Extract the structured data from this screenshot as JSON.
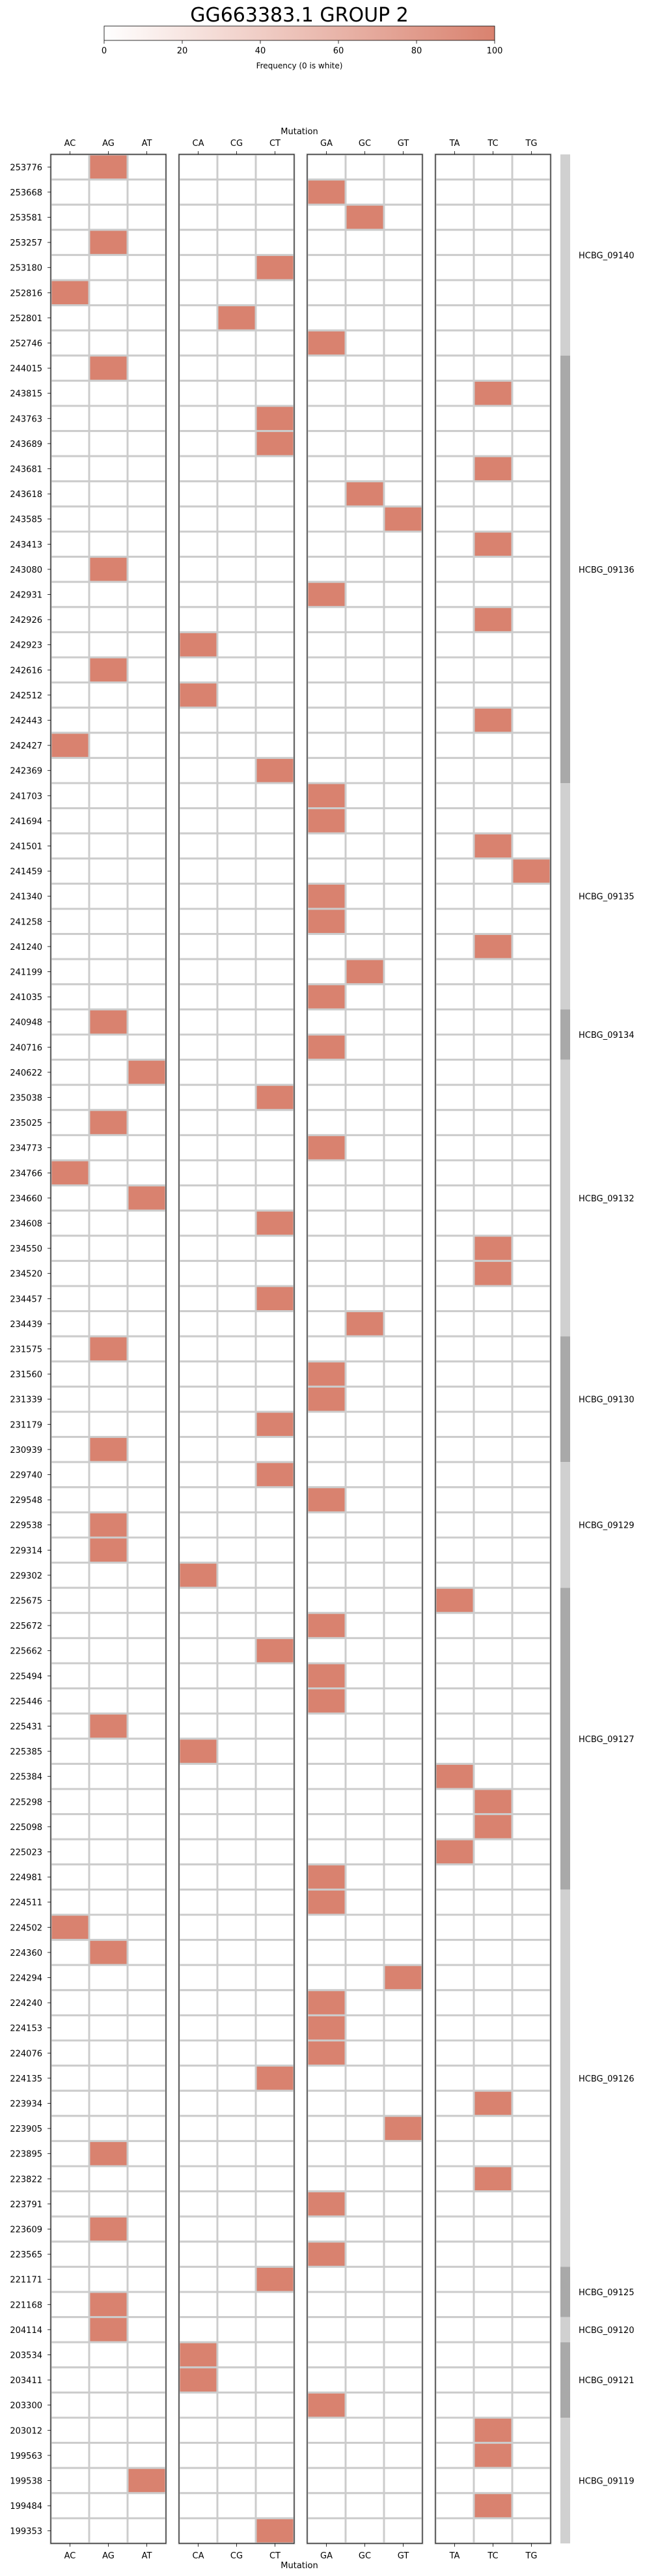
{
  "chart_data": {
    "type": "heatmap",
    "title": "GG663383.1 GROUP 2",
    "colorbar": {
      "label": "Frequency (0 is white)",
      "min": 0,
      "max": 100,
      "ticks": [
        0,
        20,
        40,
        60,
        80,
        100
      ],
      "low_color": "#ffffff",
      "high_color": "#d9826f"
    },
    "xlabel": "Mutation",
    "column_groups": [
      [
        "AC",
        "AG",
        "AT"
      ],
      [
        "CA",
        "CG",
        "CT"
      ],
      [
        "GA",
        "GC",
        "GT"
      ],
      [
        "TA",
        "TC",
        "TG"
      ]
    ],
    "rows": [
      "253776",
      "253668",
      "253581",
      "253257",
      "253180",
      "252816",
      "252801",
      "252746",
      "244015",
      "243815",
      "243763",
      "243689",
      "243681",
      "243618",
      "243585",
      "243413",
      "243080",
      "242931",
      "242926",
      "242923",
      "242616",
      "242512",
      "242443",
      "242427",
      "242369",
      "241703",
      "241694",
      "241501",
      "241459",
      "241340",
      "241258",
      "241240",
      "241199",
      "241035",
      "240948",
      "240716",
      "240622",
      "235038",
      "235025",
      "234773",
      "234766",
      "234660",
      "234608",
      "234550",
      "234520",
      "234457",
      "234439",
      "231575",
      "231560",
      "231339",
      "231179",
      "230939",
      "229740",
      "229548",
      "229538",
      "229314",
      "229302",
      "225675",
      "225672",
      "225662",
      "225494",
      "225446",
      "225431",
      "225385",
      "225384",
      "225298",
      "225098",
      "225023",
      "224981",
      "224511",
      "224502",
      "224360",
      "224294",
      "224240",
      "224153",
      "224076",
      "224135",
      "223934",
      "223905",
      "223895",
      "223822",
      "223791",
      "223609",
      "223565",
      "221171",
      "221168",
      "204114",
      "203534",
      "203411",
      "203300",
      "203012",
      "199563",
      "199538",
      "199484",
      "199353"
    ],
    "cells": [
      {
        "row": "253776",
        "col": "AG",
        "value": 100
      },
      {
        "row": "253668",
        "col": "GA",
        "value": 100
      },
      {
        "row": "253581",
        "col": "GC",
        "value": 100
      },
      {
        "row": "253257",
        "col": "AG",
        "value": 100
      },
      {
        "row": "253180",
        "col": "CT",
        "value": 100
      },
      {
        "row": "252816",
        "col": "AC",
        "value": 100
      },
      {
        "row": "252801",
        "col": "CG",
        "value": 100
      },
      {
        "row": "252746",
        "col": "GA",
        "value": 100
      },
      {
        "row": "244015",
        "col": "AG",
        "value": 100
      },
      {
        "row": "243815",
        "col": "TC",
        "value": 100
      },
      {
        "row": "243763",
        "col": "CT",
        "value": 100
      },
      {
        "row": "243689",
        "col": "CT",
        "value": 100
      },
      {
        "row": "243681",
        "col": "TC",
        "value": 100
      },
      {
        "row": "243618",
        "col": "GC",
        "value": 100
      },
      {
        "row": "243585",
        "col": "GT",
        "value": 100
      },
      {
        "row": "243413",
        "col": "TC",
        "value": 100
      },
      {
        "row": "243080",
        "col": "AG",
        "value": 100
      },
      {
        "row": "242931",
        "col": "GA",
        "value": 100
      },
      {
        "row": "242926",
        "col": "TC",
        "value": 100
      },
      {
        "row": "242923",
        "col": "CA",
        "value": 100
      },
      {
        "row": "242616",
        "col": "AG",
        "value": 100
      },
      {
        "row": "242512",
        "col": "CA",
        "value": 100
      },
      {
        "row": "242443",
        "col": "TC",
        "value": 100
      },
      {
        "row": "242427",
        "col": "AC",
        "value": 100
      },
      {
        "row": "242369",
        "col": "CT",
        "value": 100
      },
      {
        "row": "241703",
        "col": "GA",
        "value": 100
      },
      {
        "row": "241694",
        "col": "GA",
        "value": 100
      },
      {
        "row": "241501",
        "col": "TC",
        "value": 100
      },
      {
        "row": "241459",
        "col": "TG",
        "value": 100
      },
      {
        "row": "241340",
        "col": "GA",
        "value": 100
      },
      {
        "row": "241258",
        "col": "GA",
        "value": 100
      },
      {
        "row": "241240",
        "col": "TC",
        "value": 100
      },
      {
        "row": "241199",
        "col": "GC",
        "value": 100
      },
      {
        "row": "241035",
        "col": "GA",
        "value": 100
      },
      {
        "row": "240948",
        "col": "AG",
        "value": 100
      },
      {
        "row": "240716",
        "col": "GA",
        "value": 100
      },
      {
        "row": "240622",
        "col": "AT",
        "value": 100
      },
      {
        "row": "235038",
        "col": "CT",
        "value": 100
      },
      {
        "row": "235025",
        "col": "AG",
        "value": 100
      },
      {
        "row": "234773",
        "col": "GA",
        "value": 100
      },
      {
        "row": "234766",
        "col": "AC",
        "value": 100
      },
      {
        "row": "234660",
        "col": "AT",
        "value": 100
      },
      {
        "row": "234608",
        "col": "CT",
        "value": 100
      },
      {
        "row": "234550",
        "col": "TC",
        "value": 100
      },
      {
        "row": "234520",
        "col": "TC",
        "value": 100
      },
      {
        "row": "234457",
        "col": "CT",
        "value": 100
      },
      {
        "row": "234439",
        "col": "GC",
        "value": 100
      },
      {
        "row": "231575",
        "col": "AG",
        "value": 100
      },
      {
        "row": "231560",
        "col": "GA",
        "value": 100
      },
      {
        "row": "231339",
        "col": "GA",
        "value": 100
      },
      {
        "row": "231179",
        "col": "CT",
        "value": 100
      },
      {
        "row": "230939",
        "col": "AG",
        "value": 100
      },
      {
        "row": "229740",
        "col": "CT",
        "value": 100
      },
      {
        "row": "229548",
        "col": "GA",
        "value": 100
      },
      {
        "row": "229538",
        "col": "AG",
        "value": 100
      },
      {
        "row": "229314",
        "col": "AG",
        "value": 100
      },
      {
        "row": "229302",
        "col": "CA",
        "value": 100
      },
      {
        "row": "225675",
        "col": "TA",
        "value": 100
      },
      {
        "row": "225672",
        "col": "GA",
        "value": 100
      },
      {
        "row": "225662",
        "col": "CT",
        "value": 100
      },
      {
        "row": "225494",
        "col": "GA",
        "value": 100
      },
      {
        "row": "225446",
        "col": "GA",
        "value": 100
      },
      {
        "row": "225431",
        "col": "AG",
        "value": 100
      },
      {
        "row": "225385",
        "col": "CA",
        "value": 100
      },
      {
        "row": "225384",
        "col": "TA",
        "value": 100
      },
      {
        "row": "225298",
        "col": "TC",
        "value": 100
      },
      {
        "row": "225098",
        "col": "TC",
        "value": 100
      },
      {
        "row": "225023",
        "col": "TA",
        "value": 100
      },
      {
        "row": "224981",
        "col": "GA",
        "value": 100
      },
      {
        "row": "224511",
        "col": "GA",
        "value": 100
      },
      {
        "row": "224502",
        "col": "AC",
        "value": 100
      },
      {
        "row": "224360",
        "col": "AG",
        "value": 100
      },
      {
        "row": "224294",
        "col": "GT",
        "value": 100
      },
      {
        "row": "224240",
        "col": "GA",
        "value": 100
      },
      {
        "row": "224153",
        "col": "GA",
        "value": 100
      },
      {
        "row": "224076",
        "col": "GA",
        "value": 100
      },
      {
        "row": "224135",
        "col": "CT",
        "value": 100
      },
      {
        "row": "223934",
        "col": "TC",
        "value": 100
      },
      {
        "row": "223905",
        "col": "GT",
        "value": 100
      },
      {
        "row": "223895",
        "col": "AG",
        "value": 100
      },
      {
        "row": "223822",
        "col": "TC",
        "value": 100
      },
      {
        "row": "223791",
        "col": "GA",
        "value": 100
      },
      {
        "row": "223609",
        "col": "AG",
        "value": 100
      },
      {
        "row": "223565",
        "col": "GA",
        "value": 100
      },
      {
        "row": "221171",
        "col": "CT",
        "value": 100
      },
      {
        "row": "221168",
        "col": "AG",
        "value": 100
      },
      {
        "row": "204114",
        "col": "AG",
        "value": 100
      },
      {
        "row": "203534",
        "col": "CA",
        "value": 100
      },
      {
        "row": "203411",
        "col": "CA",
        "value": 100
      },
      {
        "row": "203300",
        "col": "GA",
        "value": 100
      },
      {
        "row": "203012",
        "col": "TC",
        "value": 100
      },
      {
        "row": "199563",
        "col": "TC",
        "value": 100
      },
      {
        "row": "199538",
        "col": "AT",
        "value": 100
      },
      {
        "row": "199484",
        "col": "TC",
        "value": 100
      },
      {
        "row": "199353",
        "col": "CT",
        "value": 100
      }
    ],
    "gene_groups": [
      {
        "name": "HCBG_09140",
        "first": "253776",
        "last": "252746",
        "shade": "#d0d0d0"
      },
      {
        "name": "HCBG_09136",
        "first": "244015",
        "last": "242369",
        "shade": "#a9a9a9"
      },
      {
        "name": "HCBG_09135",
        "first": "241703",
        "last": "241035",
        "shade": "#d0d0d0"
      },
      {
        "name": "HCBG_09134",
        "first": "240948",
        "last": "240716",
        "shade": "#a9a9a9"
      },
      {
        "name": "HCBG_09132",
        "first": "240622",
        "last": "234439",
        "shade": "#d0d0d0"
      },
      {
        "name": "HCBG_09130",
        "first": "231575",
        "last": "230939",
        "shade": "#a9a9a9"
      },
      {
        "name": "HCBG_09129",
        "first": "229740",
        "last": "229302",
        "shade": "#d0d0d0"
      },
      {
        "name": "HCBG_09127",
        "first": "225675",
        "last": "224981",
        "shade": "#a9a9a9"
      },
      {
        "name": "HCBG_09126",
        "first": "224511",
        "last": "223565",
        "shade": "#d0d0d0"
      },
      {
        "name": "HCBG_09125",
        "first": "221171",
        "last": "221168",
        "shade": "#a9a9a9"
      },
      {
        "name": "HCBG_09120",
        "first": "204114",
        "last": "204114",
        "shade": "#d0d0d0"
      },
      {
        "name": "HCBG_09121",
        "first": "203534",
        "last": "203300",
        "shade": "#a9a9a9"
      },
      {
        "name": "HCBG_09119",
        "first": "203012",
        "last": "199353",
        "shade": "#d0d0d0"
      }
    ]
  }
}
